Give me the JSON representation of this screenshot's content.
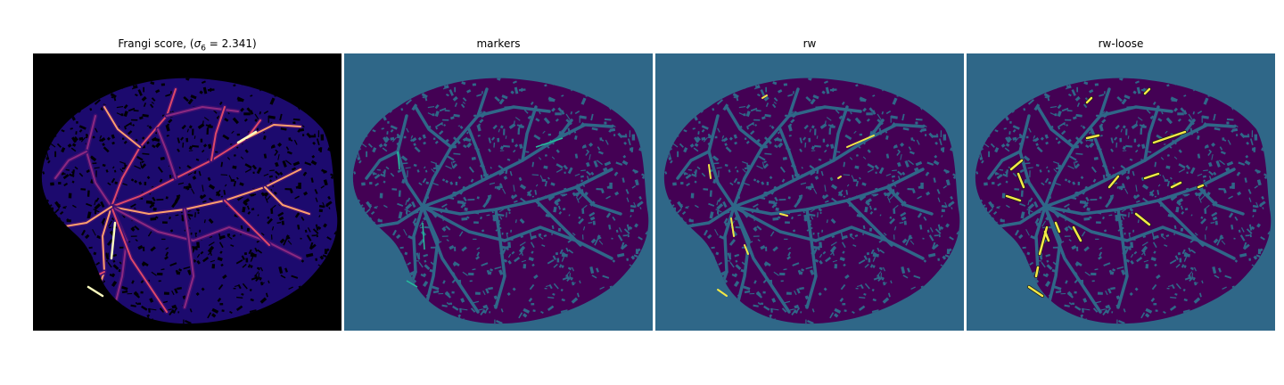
{
  "figure": {
    "panels": [
      {
        "id": "frangi",
        "title_prefix": "Frangi score, (",
        "title_symbol": "σ",
        "title_subscript": "6",
        "title_suffix": " = 2.341)",
        "background_color": "#000000",
        "tissue_color": "#1c0a6e",
        "colormap": [
          "#000004",
          "#3b0f70",
          "#8c2981",
          "#de4968",
          "#fe9f6d",
          "#fcfdbf"
        ]
      },
      {
        "id": "markers",
        "title": "markers",
        "background_color": "#2f6788",
        "tissue_color": "#440154",
        "vessel_color": "#2f6788",
        "marker_color": "#26bd9c"
      },
      {
        "id": "rw",
        "title": "rw",
        "background_color": "#2f6788",
        "tissue_color": "#440154",
        "vessel_color": "#2f6788",
        "highlight_color": "#f3e945"
      },
      {
        "id": "rw-loose",
        "title": "rw-loose",
        "background_color": "#2f6788",
        "tissue_color": "#440154",
        "vessel_color": "#2f6788",
        "highlight_color": "#f3e945"
      }
    ]
  }
}
